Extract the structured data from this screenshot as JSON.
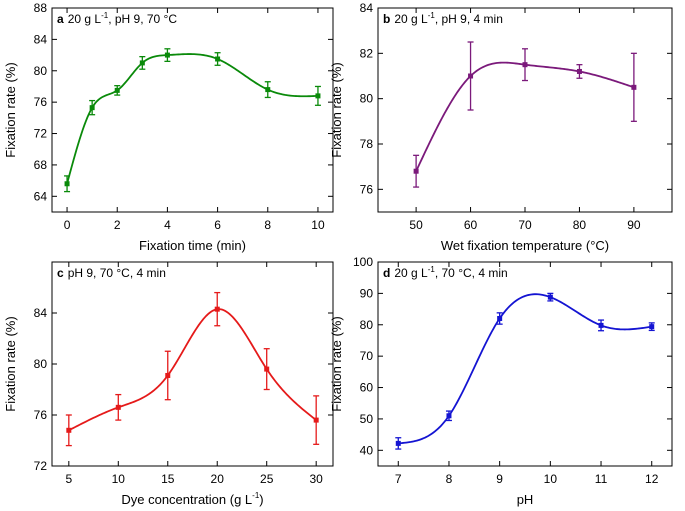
{
  "figure_title": "",
  "chart_data": [
    {
      "panel": "a",
      "type": "line",
      "condition_main": "20 g L",
      "condition_sup": "-1",
      "condition_rest": ", pH 9, 70 °C",
      "xlabel": "Fixation time (min)",
      "ylabel": "Fixation rate (%)",
      "color": "#0a8a0a",
      "xlim": [
        -0.6,
        10.6
      ],
      "ylim": [
        62,
        88
      ],
      "xticks": [
        "0",
        "2",
        "4",
        "6",
        "8",
        "10"
      ],
      "yticks": [
        "64",
        "68",
        "72",
        "76",
        "80",
        "84",
        "88"
      ],
      "series": [
        {
          "name": "Fixation rate",
          "x": [
            0,
            1,
            2,
            3,
            4,
            6,
            8,
            10
          ],
          "y": [
            65.6,
            75.3,
            77.5,
            81.0,
            82.0,
            81.5,
            77.6,
            76.8
          ],
          "err": [
            1.0,
            0.9,
            0.6,
            0.8,
            0.8,
            0.8,
            1.0,
            1.2
          ]
        }
      ]
    },
    {
      "panel": "b",
      "type": "line",
      "condition_main": "20 g L",
      "condition_sup": "-1",
      "condition_rest": ", pH 9, 4 min",
      "xlabel": "Wet fixation temperature (°C)",
      "ylabel": "Fixation rate (%)",
      "color": "#7b1a7b",
      "xlim": [
        43,
        97
      ],
      "ylim": [
        75,
        84
      ],
      "xticks": [
        "50",
        "60",
        "70",
        "80",
        "90"
      ],
      "yticks": [
        "76",
        "78",
        "80",
        "82",
        "84"
      ],
      "series": [
        {
          "name": "Fixation rate",
          "x": [
            50,
            60,
            70,
            80,
            90
          ],
          "y": [
            76.8,
            81.0,
            81.5,
            81.2,
            80.5
          ],
          "err": [
            0.7,
            1.5,
            0.7,
            0.3,
            1.5
          ]
        }
      ]
    },
    {
      "panel": "c",
      "type": "line",
      "condition_main": "pH 9, 70 °C, 4 min",
      "condition_sup": "",
      "condition_rest": "",
      "xlabel_main": "Dye concentration (g L",
      "xlabel_sup": "-1",
      "xlabel_end": ")",
      "ylabel": "Fixation rate (%)",
      "color": "#e51a1a",
      "xlim": [
        3.3,
        31.7
      ],
      "ylim": [
        72,
        88
      ],
      "xticks": [
        "5",
        "10",
        "15",
        "20",
        "25",
        "30"
      ],
      "yticks": [
        "72",
        "76",
        "80",
        "84"
      ],
      "series": [
        {
          "name": "Fixation rate",
          "x": [
            5,
            10,
            15,
            20,
            25,
            30
          ],
          "y": [
            74.8,
            76.6,
            79.1,
            84.3,
            79.6,
            75.6
          ],
          "err": [
            1.2,
            1.0,
            1.9,
            1.3,
            1.6,
            1.9
          ]
        }
      ]
    },
    {
      "panel": "d",
      "type": "line",
      "condition_main": "20 g L",
      "condition_sup": "-1",
      "condition_rest": ", 70 °C, 4 min",
      "xlabel": "pH",
      "ylabel": "Fixation rate (%)",
      "color": "#1414d2",
      "xlim": [
        6.6,
        12.4
      ],
      "ylim": [
        35,
        100
      ],
      "xticks": [
        "7",
        "8",
        "9",
        "10",
        "11",
        "12"
      ],
      "yticks": [
        "40",
        "50",
        "60",
        "70",
        "80",
        "90",
        "100"
      ],
      "series": [
        {
          "name": "Fixation rate",
          "x": [
            7,
            8,
            9,
            10,
            11,
            12
          ],
          "y": [
            42.2,
            51.0,
            82.0,
            88.8,
            79.8,
            79.4
          ],
          "err": [
            1.8,
            1.5,
            1.8,
            1.2,
            1.7,
            1.2
          ]
        }
      ]
    }
  ]
}
